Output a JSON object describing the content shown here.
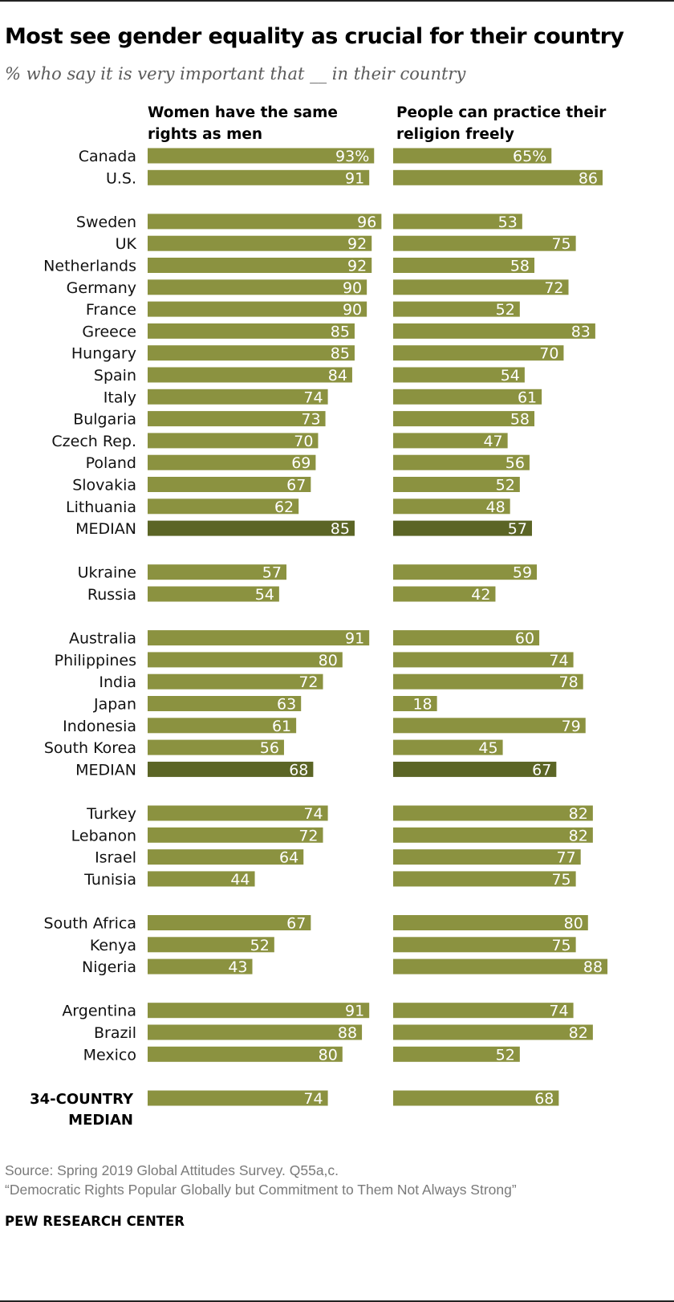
{
  "title": "Most see gender equality as crucial for their country",
  "subtitle": "% who say it is very important that __ in their country",
  "source": "Source: Spring 2019 Global Attitudes Survey. Q55a,c.",
  "report": "“Democratic Rights Popular Globally but Commitment to Them Not Always Strong”",
  "brand": "PEW RESEARCH CENTER",
  "colors": {
    "bar": "#8b9240",
    "median": "#5b6525",
    "label": "#ffffff"
  },
  "chart_data": {
    "type": "bar",
    "orientation": "horizontal",
    "title": "Most see gender equality as crucial for their country",
    "series": [
      {
        "name": "Women have the same rights as men"
      },
      {
        "name": "People can practice their religion freely"
      }
    ],
    "xlim": [
      0,
      100
    ],
    "groups": [
      {
        "rows": [
          {
            "label": "Canada",
            "values": [
              93,
              65
            ],
            "pct": true
          },
          {
            "label": "U.S.",
            "values": [
              91,
              86
            ]
          }
        ]
      },
      {
        "rows": [
          {
            "label": "Sweden",
            "values": [
              96,
              53
            ]
          },
          {
            "label": "UK",
            "values": [
              92,
              75
            ]
          },
          {
            "label": "Netherlands",
            "values": [
              92,
              58
            ]
          },
          {
            "label": "Germany",
            "values": [
              90,
              72
            ]
          },
          {
            "label": "France",
            "values": [
              90,
              52
            ]
          },
          {
            "label": "Greece",
            "values": [
              85,
              83
            ]
          },
          {
            "label": "Hungary",
            "values": [
              85,
              70
            ]
          },
          {
            "label": "Spain",
            "values": [
              84,
              54
            ]
          },
          {
            "label": "Italy",
            "values": [
              74,
              61
            ]
          },
          {
            "label": "Bulgaria",
            "values": [
              73,
              58
            ]
          },
          {
            "label": "Czech Rep.",
            "values": [
              70,
              47
            ]
          },
          {
            "label": "Poland",
            "values": [
              69,
              56
            ]
          },
          {
            "label": "Slovakia",
            "values": [
              67,
              52
            ]
          },
          {
            "label": "Lithuania",
            "values": [
              62,
              48
            ]
          },
          {
            "label": "MEDIAN",
            "values": [
              85,
              57
            ],
            "median": true
          }
        ]
      },
      {
        "rows": [
          {
            "label": "Ukraine",
            "values": [
              57,
              59
            ]
          },
          {
            "label": "Russia",
            "values": [
              54,
              42
            ]
          }
        ]
      },
      {
        "rows": [
          {
            "label": "Australia",
            "values": [
              91,
              60
            ]
          },
          {
            "label": "Philippines",
            "values": [
              80,
              74
            ]
          },
          {
            "label": "India",
            "values": [
              72,
              78
            ]
          },
          {
            "label": "Japan",
            "values": [
              63,
              18
            ]
          },
          {
            "label": "Indonesia",
            "values": [
              61,
              79
            ]
          },
          {
            "label": "South Korea",
            "values": [
              56,
              45
            ]
          },
          {
            "label": "MEDIAN",
            "values": [
              68,
              67
            ],
            "median": true
          }
        ]
      },
      {
        "rows": [
          {
            "label": "Turkey",
            "values": [
              74,
              82
            ]
          },
          {
            "label": "Lebanon",
            "values": [
              72,
              82
            ]
          },
          {
            "label": "Israel",
            "values": [
              64,
              77
            ]
          },
          {
            "label": "Tunisia",
            "values": [
              44,
              75
            ]
          }
        ]
      },
      {
        "rows": [
          {
            "label": "South Africa",
            "values": [
              67,
              80
            ]
          },
          {
            "label": "Kenya",
            "values": [
              52,
              75
            ]
          },
          {
            "label": "Nigeria",
            "values": [
              43,
              88
            ]
          }
        ]
      },
      {
        "rows": [
          {
            "label": "Argentina",
            "values": [
              91,
              74
            ]
          },
          {
            "label": "Brazil",
            "values": [
              88,
              82
            ]
          },
          {
            "label": "Mexico",
            "values": [
              80,
              52
            ]
          }
        ]
      }
    ],
    "overall": {
      "label_lines": [
        "34-COUNTRY",
        "MEDIAN"
      ],
      "values": [
        74,
        68
      ]
    }
  }
}
